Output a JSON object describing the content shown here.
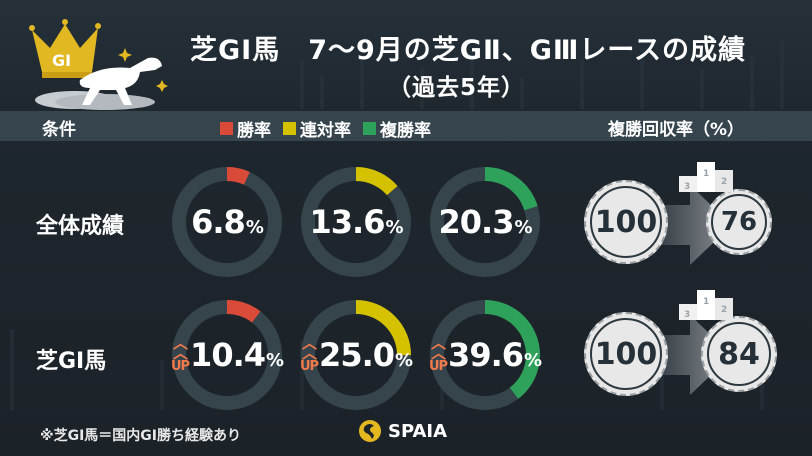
{
  "title": {
    "line1": "芝GⅠ馬　7〜9月の芝GⅡ、GⅢレースの成績",
    "line2": "（過去5年）"
  },
  "logo": {
    "badge": "GI",
    "icon": "crown-horse-icon"
  },
  "header": {
    "condition_label": "条件",
    "legend": [
      {
        "label": "勝率",
        "color": "#d94a38"
      },
      {
        "label": "連対率",
        "color": "#d4c100"
      },
      {
        "label": "複勝率",
        "color": "#2ea15a"
      }
    ],
    "return_label": "複勝回収率（%）"
  },
  "rows": [
    {
      "label": "全体成績",
      "metrics": [
        {
          "value": "6.8",
          "unit": "%",
          "pct": 6.8,
          "color": "#d94a38",
          "up": false
        },
        {
          "value": "13.6",
          "unit": "%",
          "pct": 13.6,
          "color": "#d4c100",
          "up": false
        },
        {
          "value": "20.3",
          "unit": "%",
          "pct": 20.3,
          "color": "#2ea15a",
          "up": false
        }
      ],
      "return_from": "100",
      "return_to": "76"
    },
    {
      "label": "芝GⅠ馬",
      "metrics": [
        {
          "value": "10.4",
          "unit": "%",
          "pct": 10.4,
          "color": "#d94a38",
          "up": true
        },
        {
          "value": "25.0",
          "unit": "%",
          "pct": 25.0,
          "color": "#d4c100",
          "up": true
        },
        {
          "value": "39.6",
          "unit": "%",
          "pct": 39.6,
          "color": "#2ea15a",
          "up": true
        }
      ],
      "return_from": "100",
      "return_to": "84"
    }
  ],
  "up_label": "UP",
  "podium": {
    "first": "1",
    "second": "2",
    "third": "3"
  },
  "footnote": "※芝GⅠ馬＝国内GⅠ勝ち経験あり",
  "brand": "SPAIA",
  "colors": {
    "ring_bg": "#36444c",
    "up": "#f07a4a",
    "background": "#1c2329",
    "header_bar": "#35444d"
  }
}
